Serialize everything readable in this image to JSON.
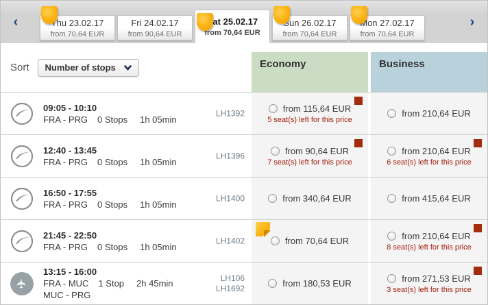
{
  "nav": {
    "prev": "‹",
    "next": "›"
  },
  "tabs": [
    {
      "day": "Thu 23.02.17",
      "price": "from 70,64 EUR",
      "badge": true,
      "selected": false
    },
    {
      "day": "Fri 24.02.17",
      "price": "from 90,64 EUR",
      "badge": false,
      "selected": false
    },
    {
      "day": "Sat 25.02.17",
      "price": "from 70,64 EUR",
      "badge": true,
      "selected": true
    },
    {
      "day": "Sun 26.02.17",
      "price": "from 70,64 EUR",
      "badge": true,
      "selected": false
    },
    {
      "day": "Mon 27.02.17",
      "price": "from 70,64 EUR",
      "badge": true,
      "selected": false
    }
  ],
  "sort": {
    "label": "Sort",
    "selected_option": "Number of stops"
  },
  "columns": [
    {
      "label": "Economy"
    },
    {
      "label": "Business"
    }
  ],
  "flights": [
    {
      "airline_icon": "lufthansa-crane",
      "times": "09:05 - 10:10",
      "route": "FRA - PRG",
      "stops": "0 Stops",
      "duration": "1h 05min",
      "second_leg": null,
      "flight_numbers": [
        "LH1392"
      ],
      "economy": {
        "price": "from 115,64 EUR",
        "seats_left": "5 seat(s) left for this price",
        "limited_marker": true,
        "promo_tag": false
      },
      "business": {
        "price": "from 210,64 EUR",
        "seats_left": "",
        "limited_marker": false
      }
    },
    {
      "airline_icon": "lufthansa-crane",
      "times": "12:40 - 13:45",
      "route": "FRA - PRG",
      "stops": "0 Stops",
      "duration": "1h 05min",
      "second_leg": null,
      "flight_numbers": [
        "LH1396"
      ],
      "economy": {
        "price": "from 90,64 EUR",
        "seats_left": "7 seat(s) left for this price",
        "limited_marker": true,
        "promo_tag": false
      },
      "business": {
        "price": "from 210,64 EUR",
        "seats_left": "6 seat(s) left for this price",
        "limited_marker": true
      }
    },
    {
      "airline_icon": "lufthansa-crane",
      "times": "16:50 - 17:55",
      "route": "FRA - PRG",
      "stops": "0 Stops",
      "duration": "1h 05min",
      "second_leg": null,
      "flight_numbers": [
        "LH1400"
      ],
      "economy": {
        "price": "from 340,64 EUR",
        "seats_left": "",
        "limited_marker": false,
        "promo_tag": false
      },
      "business": {
        "price": "from 415,64 EUR",
        "seats_left": "",
        "limited_marker": false
      }
    },
    {
      "airline_icon": "lufthansa-crane",
      "times": "21:45 - 22:50",
      "route": "FRA - PRG",
      "stops": "0 Stops",
      "duration": "1h 05min",
      "second_leg": null,
      "flight_numbers": [
        "LH1402"
      ],
      "economy": {
        "price": "from 70,64 EUR",
        "seats_left": "",
        "limited_marker": false,
        "promo_tag": true
      },
      "business": {
        "price": "from 210,64 EUR",
        "seats_left": "8 seat(s) left for this price",
        "limited_marker": true
      }
    },
    {
      "airline_icon": "plane",
      "times": "13:15 - 16:00",
      "route": "FRA - MUC",
      "stops": "1 Stop",
      "duration": "2h 45min",
      "second_leg": "MUC - PRG",
      "flight_numbers": [
        "LH106",
        "LH1692"
      ],
      "economy": {
        "price": "from 180,53 EUR",
        "seats_left": "",
        "limited_marker": false,
        "promo_tag": false
      },
      "business": {
        "price": "from 271,53 EUR",
        "seats_left": "3 seat(s) left for this price",
        "limited_marker": true
      }
    }
  ],
  "colors": {
    "economy_header": "#cbdcc5",
    "business_header": "#b8d1da",
    "limited_marker": "#a32c0d",
    "seats_note": "#a41e0c",
    "best_price_badge": "#f9ab00",
    "accent_navy": "#24418e"
  }
}
